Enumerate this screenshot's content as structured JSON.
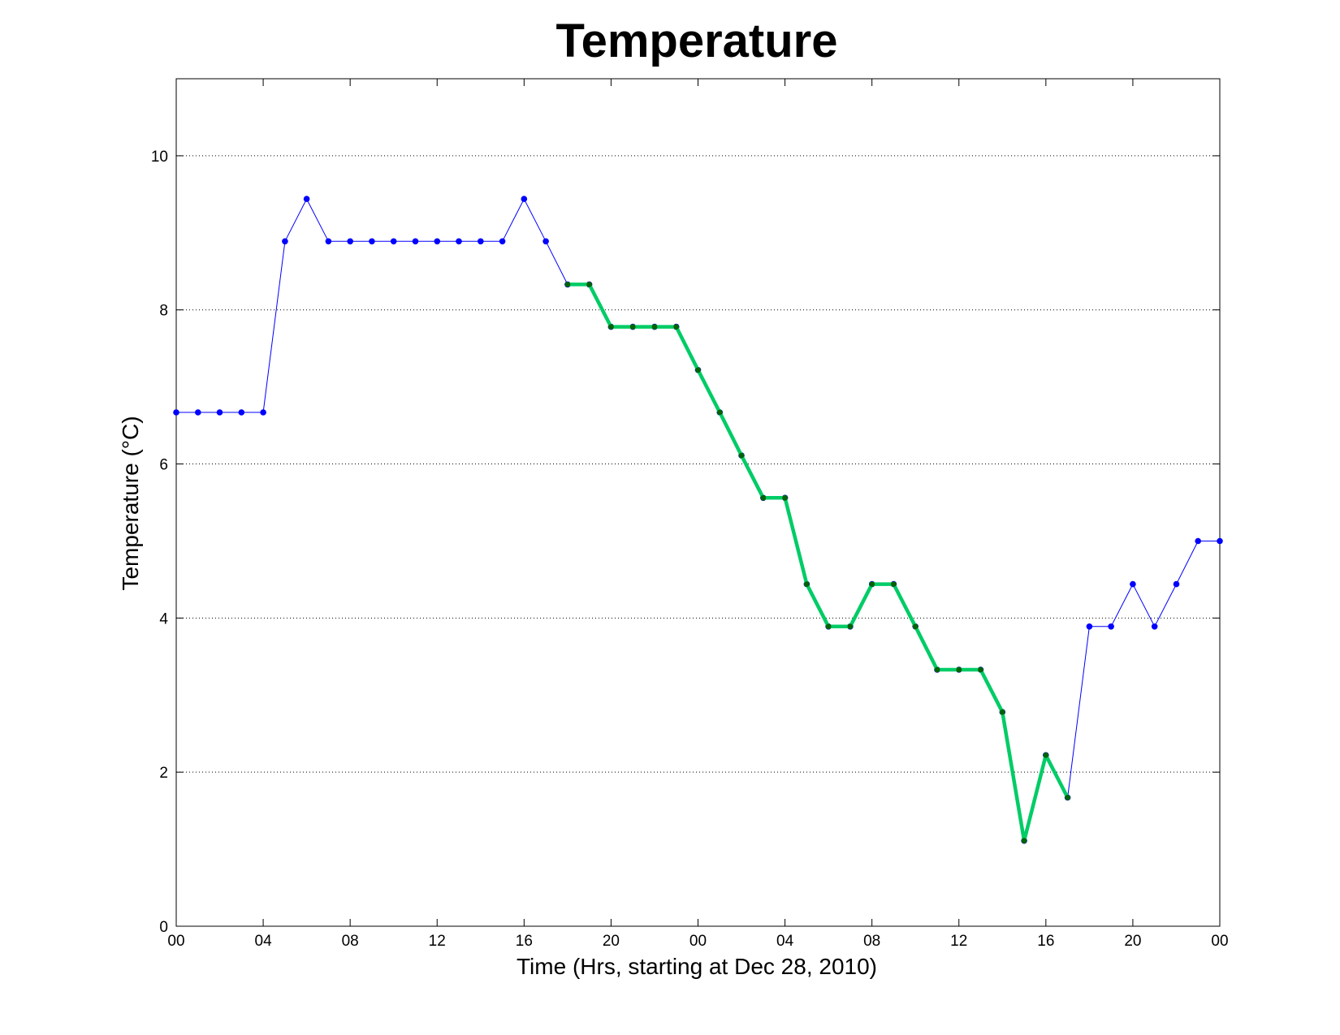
{
  "chart_data": {
    "type": "line",
    "title": "Temperature",
    "xlabel": "Time (Hrs, starting at Dec 28, 2010)",
    "ylabel": "Temperature (°C)",
    "xlim": [
      0,
      48
    ],
    "ylim": [
      0,
      11
    ],
    "x_ticks": [
      0,
      4,
      8,
      12,
      16,
      20,
      24,
      28,
      32,
      36,
      40,
      44,
      48
    ],
    "x_tick_labels": [
      "00",
      "04",
      "08",
      "12",
      "16",
      "20",
      "00",
      "04",
      "08",
      "12",
      "16",
      "20",
      "00"
    ],
    "y_ticks": [
      0,
      2,
      4,
      6,
      8,
      10
    ],
    "y_tick_labels": [
      "0",
      "2",
      "4",
      "6",
      "8",
      "10"
    ],
    "grid": "y dotted",
    "series": [
      {
        "color": "#0000ff",
        "marker_color": "#0000ff",
        "line_style": "thin",
        "x": [
          0,
          1,
          2,
          3,
          4,
          5,
          6,
          7,
          8,
          9,
          10,
          11,
          12,
          13,
          14,
          15,
          16,
          17,
          18,
          19,
          20,
          21,
          22,
          23,
          24,
          25,
          26,
          27,
          28,
          29,
          30,
          31,
          32,
          33,
          34,
          35,
          36,
          37,
          38,
          39,
          40,
          41,
          42,
          43,
          44,
          45,
          46,
          47,
          48
        ],
        "values": [
          6.67,
          6.67,
          6.67,
          6.67,
          6.67,
          8.89,
          9.44,
          8.89,
          8.89,
          8.89,
          8.89,
          8.89,
          8.89,
          8.89,
          8.89,
          8.89,
          9.44,
          8.89,
          8.33,
          8.33,
          7.78,
          7.78,
          7.78,
          7.78,
          7.22,
          6.67,
          6.11,
          5.56,
          5.56,
          4.44,
          3.89,
          3.89,
          4.44,
          4.44,
          3.89,
          3.33,
          3.33,
          3.33,
          2.78,
          1.11,
          2.22,
          1.67,
          3.89,
          3.89,
          4.44,
          3.89,
          4.44,
          5.0,
          5.0
        ]
      },
      {
        "color": "#00cc66",
        "marker_color": "#006400",
        "line_style": "thick",
        "x": [
          18,
          19,
          20,
          21,
          22,
          23,
          24,
          25,
          26,
          27,
          28,
          29,
          30,
          31,
          32,
          33,
          34,
          35,
          36,
          37,
          38,
          39,
          40,
          41
        ],
        "values": [
          8.33,
          8.33,
          7.78,
          7.78,
          7.78,
          7.78,
          7.22,
          6.67,
          6.11,
          5.56,
          5.56,
          4.44,
          3.89,
          3.89,
          4.44,
          4.44,
          3.89,
          3.33,
          3.33,
          3.33,
          2.78,
          1.11,
          2.22,
          1.67
        ]
      }
    ]
  }
}
